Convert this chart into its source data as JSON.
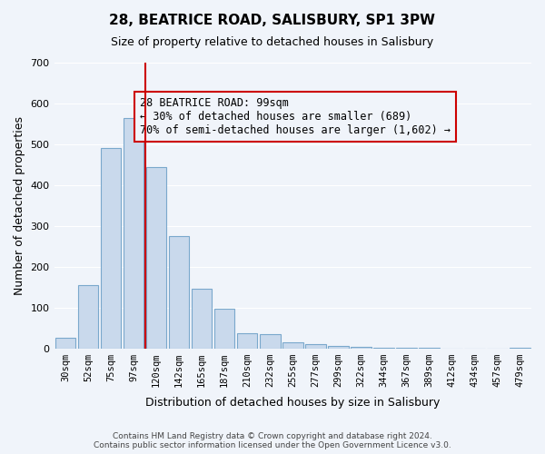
{
  "title": "28, BEATRICE ROAD, SALISBURY, SP1 3PW",
  "subtitle": "Size of property relative to detached houses in Salisbury",
  "xlabel": "Distribution of detached houses by size in Salisbury",
  "ylabel": "Number of detached properties",
  "bar_labels": [
    "30sqm",
    "52sqm",
    "75sqm",
    "97sqm",
    "120sqm",
    "142sqm",
    "165sqm",
    "187sqm",
    "210sqm",
    "232sqm",
    "255sqm",
    "277sqm",
    "299sqm",
    "322sqm",
    "344sqm",
    "367sqm",
    "389sqm",
    "412sqm",
    "434sqm",
    "457sqm",
    "479sqm"
  ],
  "bar_heights": [
    25,
    155,
    490,
    565,
    445,
    275,
    145,
    97,
    37,
    35,
    15,
    10,
    5,
    3,
    2,
    2,
    1,
    0,
    0,
    0,
    2
  ],
  "bar_color": "#c9d9ec",
  "bar_edge_color": "#7aa8cc",
  "vline_x": 3,
  "vline_color": "#cc0000",
  "annotation_text": "28 BEATRICE ROAD: 99sqm\n← 30% of detached houses are smaller (689)\n70% of semi-detached houses are larger (1,602) →",
  "annotation_box_edge": "#cc0000",
  "ylim": [
    0,
    700
  ],
  "yticks": [
    0,
    100,
    200,
    300,
    400,
    500,
    600,
    700
  ],
  "footnote": "Contains HM Land Registry data © Crown copyright and database right 2024.\nContains public sector information licensed under the Open Government Licence v3.0.",
  "background_color": "#f0f4fa"
}
